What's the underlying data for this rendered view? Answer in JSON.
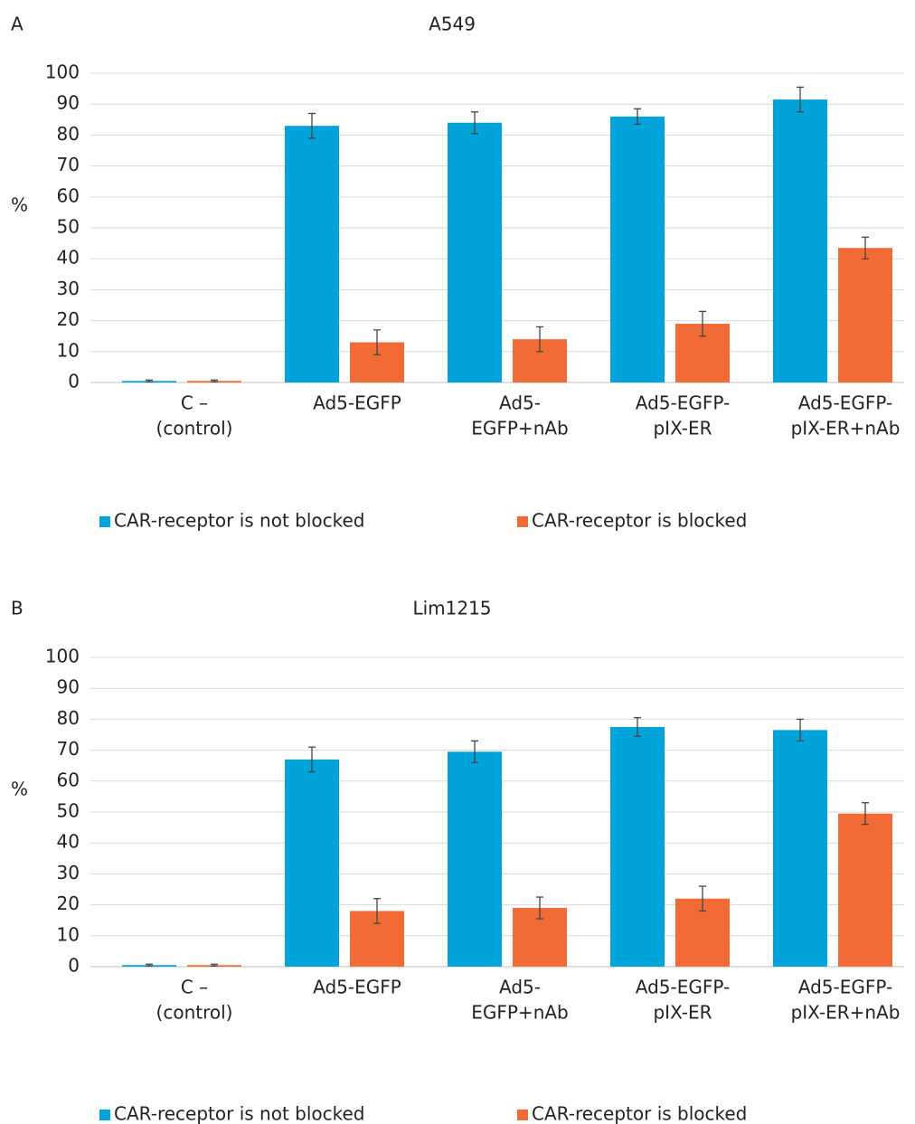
{
  "chart_data": [
    {
      "type": "bar",
      "panel": "A",
      "title": "A549",
      "ylabel": "%",
      "categories": [
        [
          "C –",
          "(control)"
        ],
        [
          "Ad5-EGFP"
        ],
        [
          "Ad5-",
          "EGFP+nAb"
        ],
        [
          "Ad5-EGFP-",
          "pIX-ER"
        ],
        [
          "Ad5-EGFP-",
          "pIX-ER+nAb"
        ]
      ],
      "series": [
        {
          "name": "CAR-receptor is not blocked",
          "color": "#00a3da",
          "values": [
            0.5,
            83,
            84,
            86,
            91.5
          ],
          "errors": [
            0.3,
            4,
            3.5,
            2.5,
            4
          ]
        },
        {
          "name": "CAR-receptor is blocked",
          "color": "#f26b36",
          "values": [
            0.5,
            13,
            14,
            19,
            43.5
          ],
          "errors": [
            0.3,
            4,
            4,
            4,
            3.5
          ]
        }
      ],
      "ylim": [
        0,
        100
      ],
      "yticks": [
        0,
        10,
        20,
        30,
        40,
        50,
        60,
        70,
        80,
        90,
        100
      ],
      "grid": true,
      "legend": "bottom"
    },
    {
      "type": "bar",
      "panel": "B",
      "title": "Lim1215",
      "ylabel": "%",
      "categories": [
        [
          "C –",
          "(control)"
        ],
        [
          "Ad5-EGFP"
        ],
        [
          "Ad5-",
          "EGFP+nAb"
        ],
        [
          "Ad5-EGFP-",
          "pIX-ER"
        ],
        [
          "Ad5-EGFP-",
          "pIX-ER+nAb"
        ]
      ],
      "series": [
        {
          "name": "CAR-receptor is not blocked",
          "color": "#00a3da",
          "values": [
            0.5,
            67,
            69.5,
            77.5,
            76.5
          ],
          "errors": [
            0.3,
            4,
            3.5,
            3,
            3.5
          ]
        },
        {
          "name": "CAR-receptor is blocked",
          "color": "#f26b36",
          "values": [
            0.5,
            18,
            19,
            22,
            49.5
          ],
          "errors": [
            0.3,
            4,
            3.5,
            4,
            3.5
          ]
        }
      ],
      "ylim": [
        0,
        100
      ],
      "yticks": [
        0,
        10,
        20,
        30,
        40,
        50,
        60,
        70,
        80,
        90,
        100
      ],
      "grid": true,
      "legend": "bottom"
    }
  ]
}
